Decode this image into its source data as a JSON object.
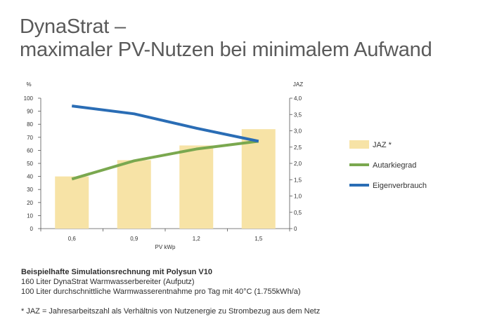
{
  "title": {
    "line1": "DynaStrat –",
    "line2": "maximaler PV-Nutzen bei minimalem Aufwand"
  },
  "chart_data": {
    "type": "bar",
    "x_label": "PV kWp",
    "categories": [
      "0,6",
      "0,9",
      "1,2",
      "1,5"
    ],
    "y_left": {
      "label": "%",
      "min": 0,
      "max": 100,
      "ticks": [
        "0",
        "10",
        "20",
        "30",
        "40",
        "50",
        "60",
        "70",
        "80",
        "90",
        "100"
      ]
    },
    "y_right": {
      "label": "JAZ",
      "min": 0,
      "max": 4,
      "ticks": [
        "0",
        "0,5",
        "1,0",
        "1,5",
        "2,0",
        "2,5",
        "3,0",
        "3,5",
        "4,0"
      ]
    },
    "series": [
      {
        "name": "JAZ *",
        "kind": "bar",
        "axis": "right",
        "color": "#f7e3a6",
        "values": [
          1.6,
          2.1,
          2.55,
          3.05
        ]
      },
      {
        "name": "Autarkiegrad",
        "kind": "line",
        "axis": "left",
        "color": "#7aa84f",
        "values": [
          38,
          52,
          61,
          67
        ]
      },
      {
        "name": "Eigenverbrauch",
        "kind": "line",
        "axis": "left",
        "color": "#2a6db5",
        "values": [
          94,
          88,
          77,
          67
        ]
      }
    ],
    "legend_position": "right"
  },
  "notes": {
    "heading": "Beispielhafte Simulationsrechnung mit Polysun V10",
    "line1": "160 Liter DynaStrat Warmwasserbereiter (Aufputz)",
    "line2": "100 Liter durchschnittliche Warmwasserentnahme pro Tag mit 40°C (1.755kWh/a)",
    "footnote": "* JAZ = Jahresarbeitszahl als Verhältnis von Nutzenergie zu Strombezug aus dem Netz"
  }
}
